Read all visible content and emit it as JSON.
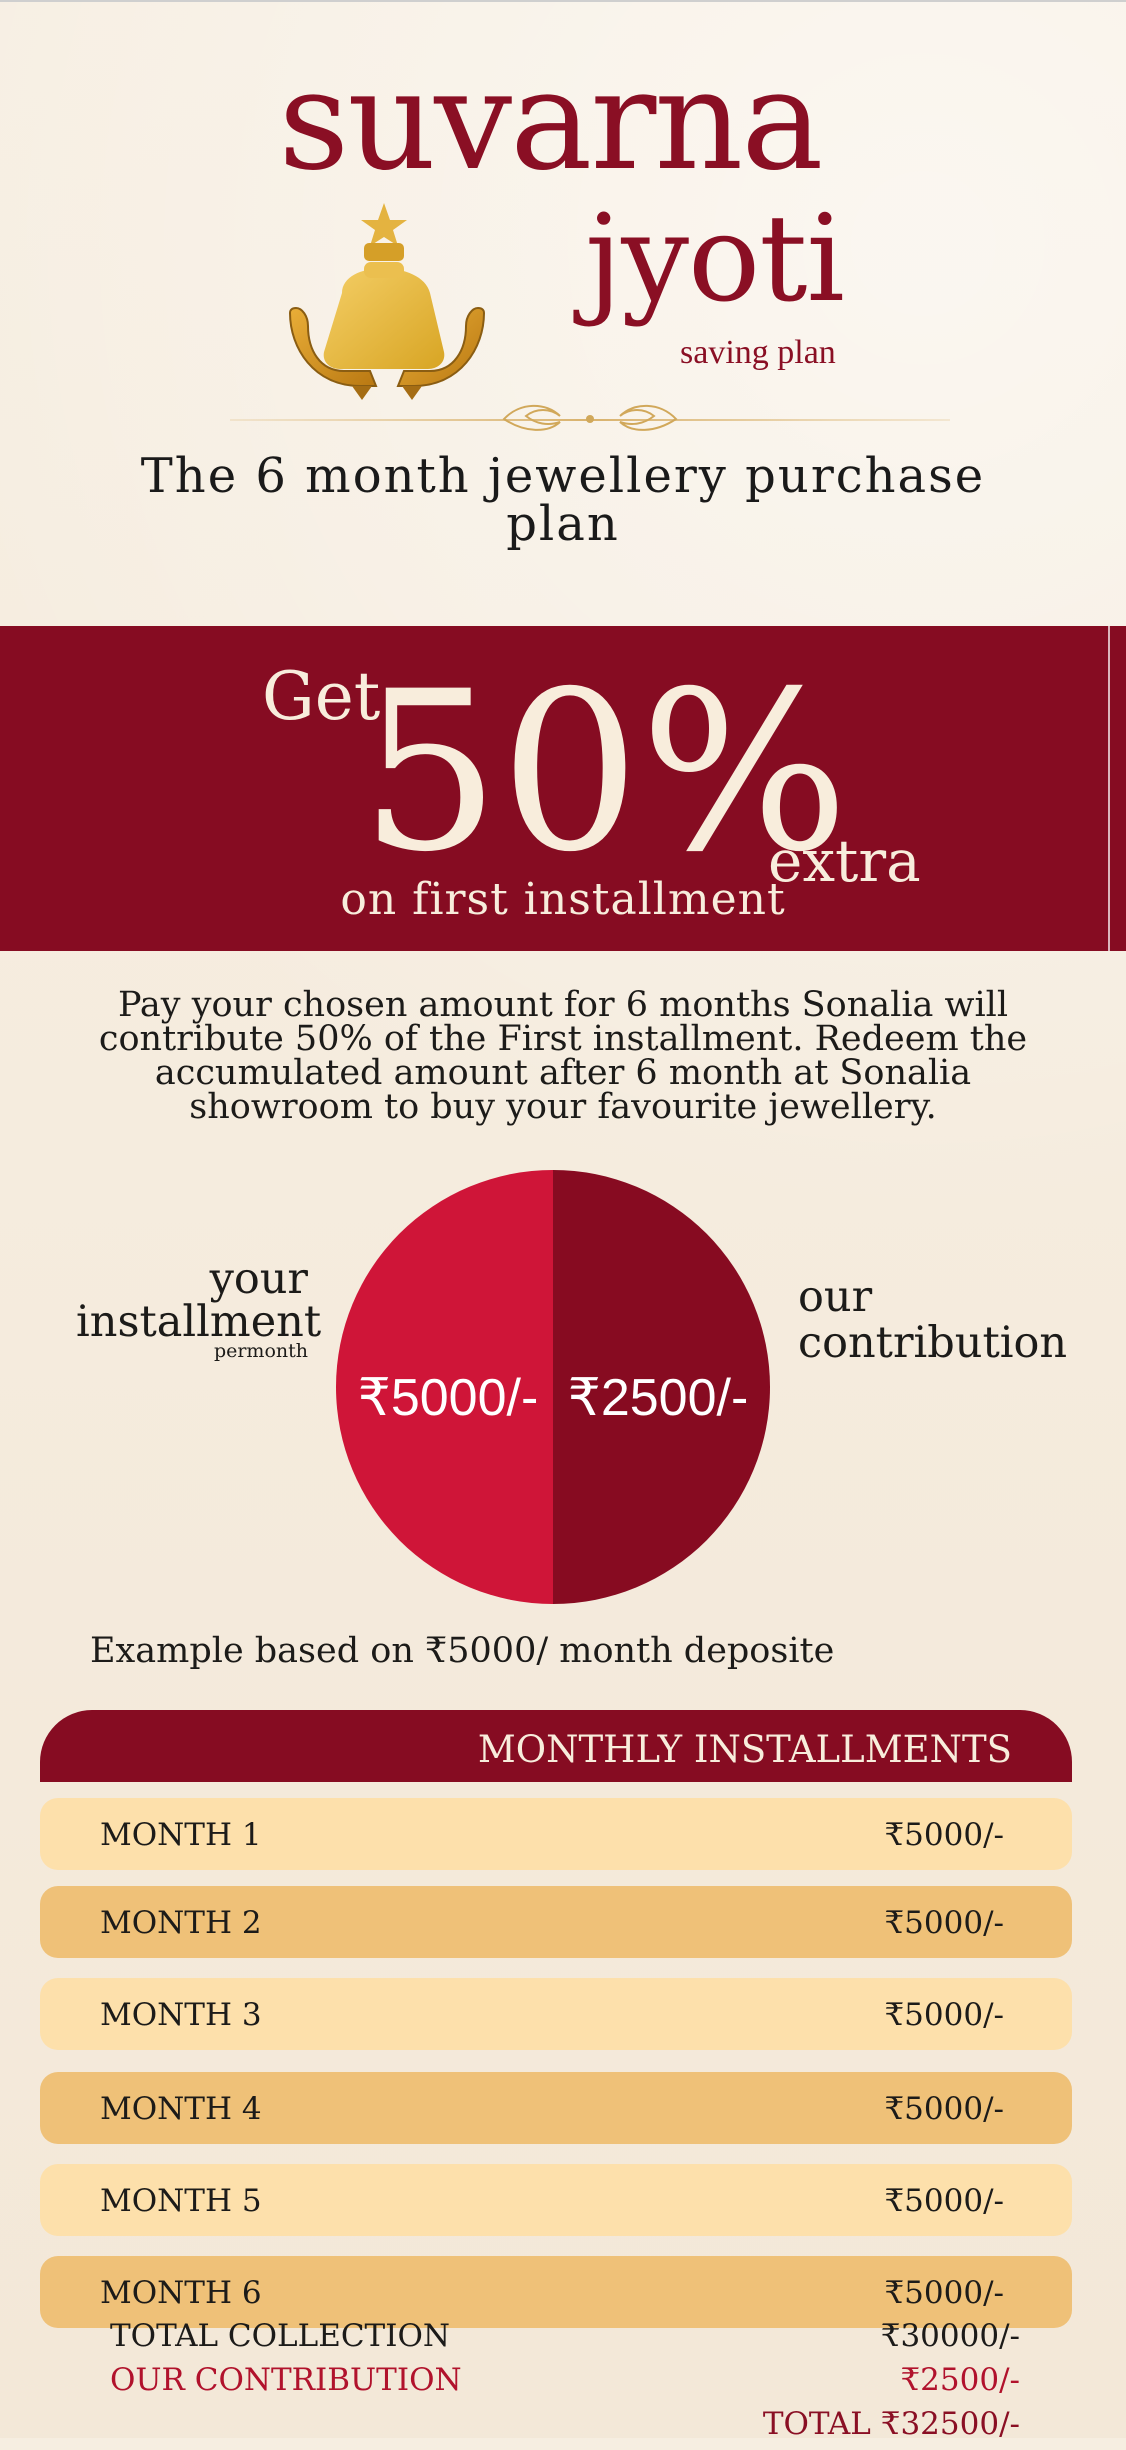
{
  "header": {
    "brand_name": "suvarna",
    "subbrand": "jyoti",
    "saving_plan": "saving plan",
    "plan_title": "The 6 month jewellery purchase plan"
  },
  "offer": {
    "get": "Get",
    "percent": "50%",
    "extra": "extra",
    "installment": "on first installment"
  },
  "description": "Pay your chosen amount for 6 months Sonalia will contribute 50% of the First installment. Redeem the accumulated amount after 6 month at Sonalia showroom to buy your favourite jewellery.",
  "pie": {
    "left_label_1": "your",
    "left_label_2": "installment",
    "left_label_3": "permonth",
    "right_label_1": "our",
    "right_label_2": "contribution",
    "left_value": "₹5000/-",
    "right_value": "₹2500/-",
    "left_color": "#cf1538",
    "right_color": "#870b21"
  },
  "example": "Example based on ₹5000/ month deposite",
  "table": {
    "header": "MONTHLY INSTALLMENTS",
    "rows": [
      {
        "month": "MONTH 1",
        "amount": "₹5000/-"
      },
      {
        "month": "MONTH 2",
        "amount": "₹5000/-"
      },
      {
        "month": "MONTH 3",
        "amount": "₹5000/-"
      },
      {
        "month": "MONTH 4",
        "amount": "₹5000/-"
      },
      {
        "month": "MONTH 5",
        "amount": "₹5000/-"
      },
      {
        "month": "MONTH 6",
        "amount": "₹5000/-"
      }
    ]
  },
  "summary": {
    "total_collection_label": "TOTAL COLLECTION",
    "total_collection_value": "₹30000/-",
    "our_contribution_label": "OUR CONTRIBUTION",
    "our_contribution_value": "₹2500/-",
    "total_value": "TOTAL ₹32500/-"
  },
  "colors": {
    "maroon": "#860c22",
    "red": "#cf1538",
    "gold": "#efc178",
    "cream": "#f8eddc"
  }
}
